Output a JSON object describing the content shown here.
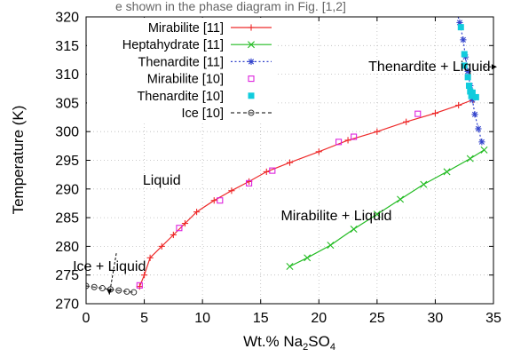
{
  "top_caption": "e shown in the phase diagram in Fig. [1,2]",
  "chart_data": {
    "type": "scatter",
    "xlabel": "Wt.% Na",
    "xlabel_sub1": "2",
    "xlabel_mid": "SO",
    "xlabel_sub2": "4",
    "ylabel": "Temperature (K)",
    "xlim": [
      0,
      35
    ],
    "ylim": [
      270,
      320
    ],
    "xticks": [
      0,
      5,
      10,
      15,
      20,
      25,
      30,
      35
    ],
    "yticks": [
      270,
      275,
      280,
      285,
      290,
      295,
      300,
      305,
      310,
      315,
      320
    ],
    "grid": true,
    "legend_position": "top-left",
    "region_labels": [
      {
        "text": "Liquid",
        "x": 6.5,
        "y": 291.5
      },
      {
        "text": "Mirabilite + Liquid",
        "x": 21.5,
        "y": 285.3
      },
      {
        "text": "Ice + Liquid",
        "x": 2.0,
        "y": 276.5
      },
      {
        "text": "Thenardite + Liquid",
        "x": 29.5,
        "y": 311.3
      }
    ],
    "series": [
      {
        "name": "Mirabilite [11]",
        "color": "#ee2a2a",
        "style": "line+plus",
        "points": [
          [
            4.6,
            273
          ],
          [
            5.0,
            275
          ],
          [
            5.5,
            278
          ],
          [
            6.5,
            280
          ],
          [
            7.5,
            282
          ],
          [
            8.5,
            284
          ],
          [
            9.5,
            286
          ],
          [
            11,
            288
          ],
          [
            12.5,
            289.7
          ],
          [
            14,
            291.3
          ],
          [
            15.5,
            293
          ],
          [
            17.5,
            294.6
          ],
          [
            20,
            296.5
          ],
          [
            22.5,
            298.5
          ],
          [
            25,
            300
          ],
          [
            27.5,
            301.7
          ],
          [
            30,
            303.2
          ],
          [
            32,
            304.6
          ],
          [
            33.3,
            305.6
          ]
        ]
      },
      {
        "name": "Heptahydrate [11]",
        "color": "#22bb22",
        "style": "line+cross",
        "points": [
          [
            17.5,
            276.5
          ],
          [
            19,
            278
          ],
          [
            21,
            280.2
          ],
          [
            23,
            283
          ],
          [
            25,
            285.6
          ],
          [
            27,
            288.2
          ],
          [
            29,
            290.8
          ],
          [
            31,
            293
          ],
          [
            33,
            295.3
          ],
          [
            34.2,
            296.8
          ]
        ]
      },
      {
        "name": "Thenardite [11]",
        "color": "#3344cc",
        "style": "dotted+star",
        "points": [
          [
            31.7,
            322
          ],
          [
            32.1,
            319
          ],
          [
            32.4,
            316
          ],
          [
            32.6,
            313
          ],
          [
            32.8,
            310.5
          ],
          [
            33.0,
            308
          ],
          [
            33.2,
            305.5
          ],
          [
            33.4,
            303
          ],
          [
            33.7,
            300.5
          ],
          [
            34.0,
            298.2
          ]
        ]
      },
      {
        "name": "Mirabilite [10]",
        "color": "#dd22dd",
        "style": "open-square",
        "points": [
          [
            4.6,
            273.2
          ],
          [
            8.0,
            283.2
          ],
          [
            11.5,
            288
          ],
          [
            14.0,
            291
          ],
          [
            16.0,
            293.2
          ],
          [
            21.7,
            298.2
          ],
          [
            23.0,
            299.1
          ],
          [
            28.5,
            303.1
          ]
        ]
      },
      {
        "name": "Thenardite [10]",
        "color": "#11ccdd",
        "style": "filled-square",
        "points": [
          [
            32.2,
            318.2
          ],
          [
            32.5,
            313.5
          ],
          [
            32.5,
            311.5
          ],
          [
            32.8,
            309.5
          ],
          [
            32.9,
            308
          ],
          [
            33.0,
            307
          ],
          [
            33.2,
            306.8
          ],
          [
            33.1,
            306.2
          ],
          [
            33.5,
            306.0
          ]
        ]
      },
      {
        "name": "Ice [10]",
        "color": "#333333",
        "style": "dashed+circle",
        "points": [
          [
            0,
            273.1
          ],
          [
            0.7,
            272.9
          ],
          [
            1.4,
            272.7
          ],
          [
            2.1,
            272.5
          ],
          [
            2.8,
            272.3
          ],
          [
            3.5,
            272.1
          ],
          [
            4.1,
            272.0
          ]
        ]
      }
    ]
  }
}
